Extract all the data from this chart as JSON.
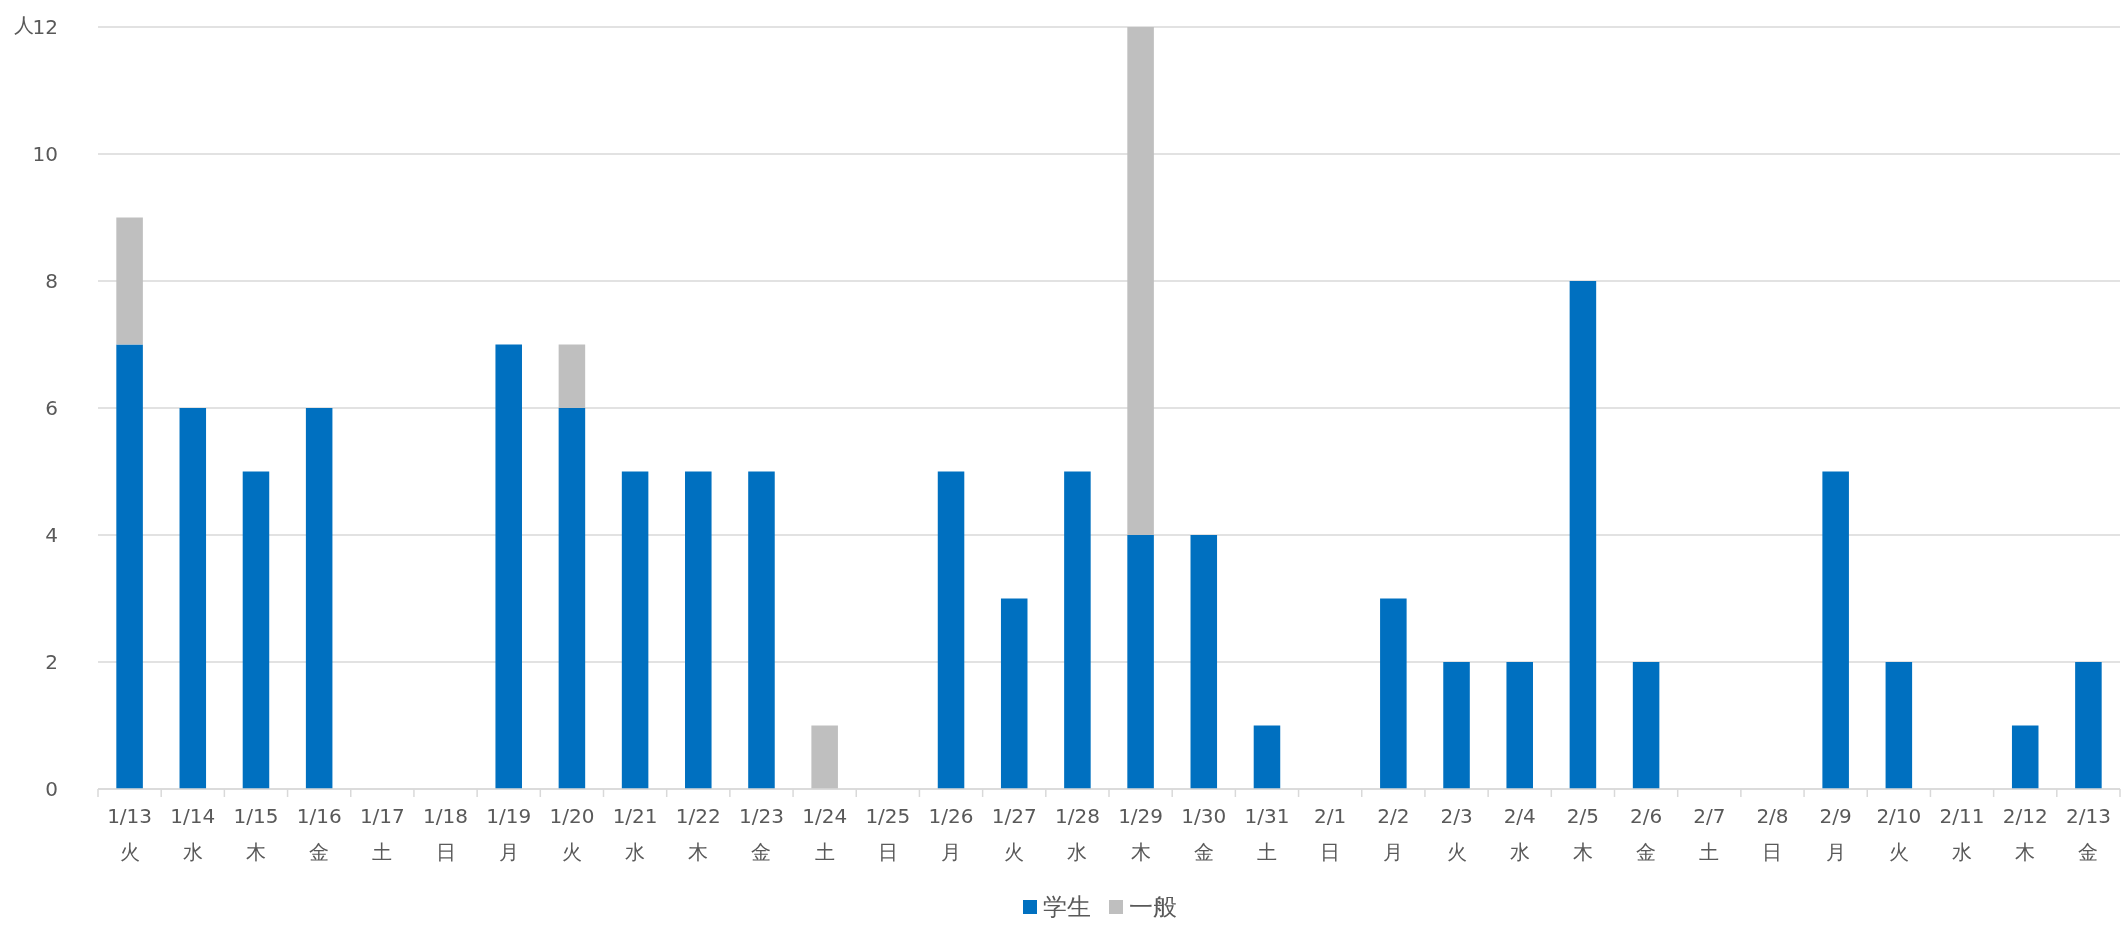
{
  "chart_data": {
    "type": "bar",
    "stacked": true,
    "ylabel": "人",
    "categories": [
      "1/13\n火",
      "1/14\n水",
      "1/15\n木",
      "1/16\n金",
      "1/17\n土",
      "1/18\n日",
      "1/19\n月",
      "1/20\n火",
      "1/21\n水",
      "1/22\n木",
      "1/23\n金",
      "1/24\n土",
      "1/25\n日",
      "1/26\n月",
      "1/27\n火",
      "1/28\n水",
      "1/29\n木",
      "1/30\n金",
      "1/31\n土",
      "2/1\n日",
      "2/2\n月",
      "2/3\n火",
      "2/4\n水",
      "2/5\n木",
      "2/6\n金",
      "2/7\n土",
      "2/8\n日",
      "2/9\n月",
      "2/10\n火",
      "2/11\n水",
      "2/12\n木",
      "2/13\n金"
    ],
    "series": [
      {
        "name": "学生",
        "color": "#0070c0",
        "values": [
          7,
          6,
          5,
          6,
          0,
          0,
          7,
          6,
          5,
          5,
          5,
          0,
          0,
          5,
          3,
          5,
          4,
          4,
          1,
          0,
          3,
          2,
          2,
          8,
          2,
          0,
          0,
          5,
          2,
          0,
          1,
          2
        ]
      },
      {
        "name": "一般",
        "color": "#bfbfbf",
        "values": [
          2,
          0,
          0,
          0,
          0,
          0,
          0,
          1,
          0,
          0,
          0,
          1,
          0,
          0,
          0,
          0,
          8,
          0,
          0,
          0,
          0,
          0,
          0,
          0,
          0,
          0,
          0,
          0,
          0,
          0,
          0,
          0
        ]
      }
    ],
    "ylim": [
      0,
      12
    ],
    "yticks": [
      0,
      2,
      4,
      6,
      8,
      10,
      12
    ],
    "grid": "y",
    "legend": "bottom"
  }
}
